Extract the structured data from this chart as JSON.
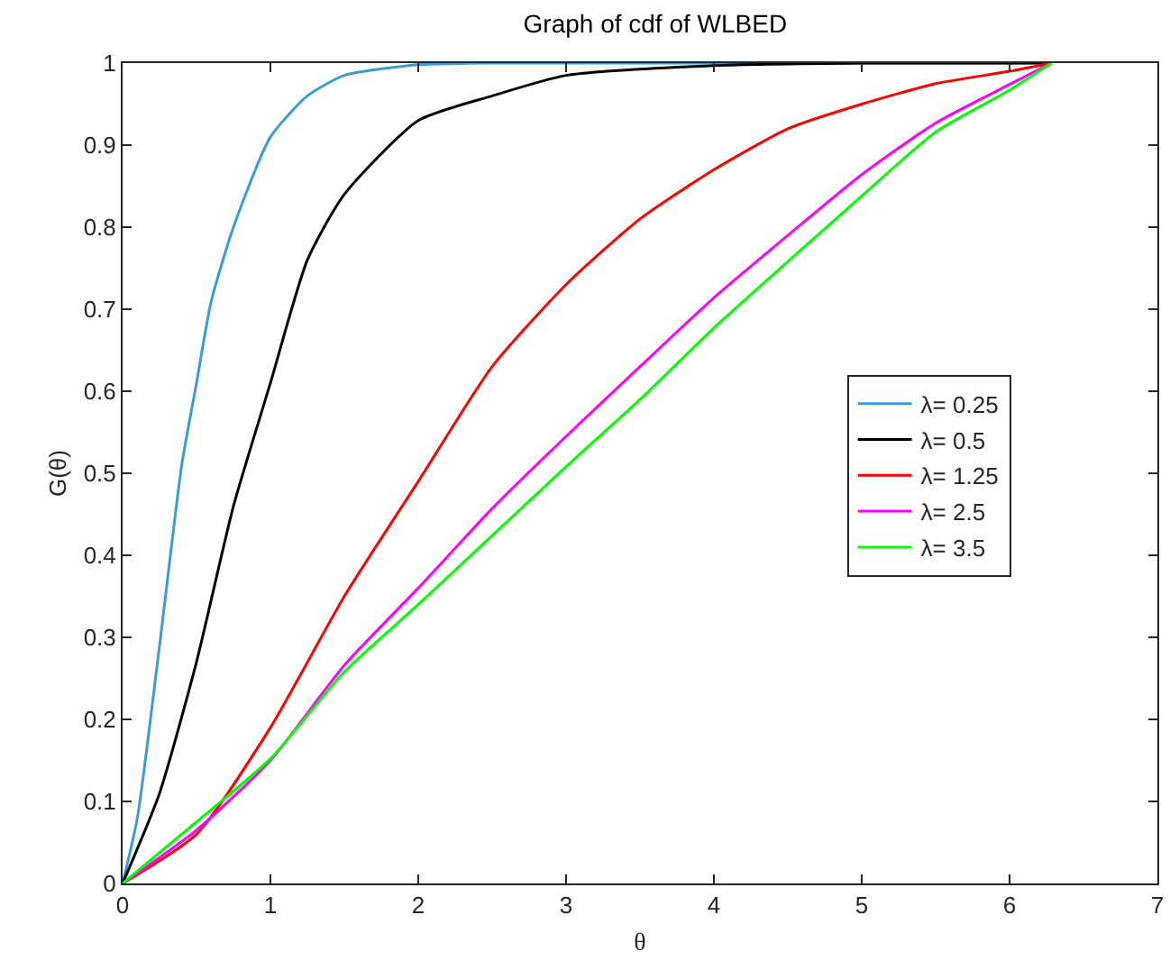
{
  "chart_data": {
    "type": "line",
    "title": "Graph of cdf of WLBED",
    "xlabel": "θ",
    "ylabel": "G(θ)",
    "xlim": [
      0,
      7
    ],
    "xticks": [
      0,
      1,
      2,
      3,
      4,
      5,
      6,
      7
    ],
    "ylim": [
      0,
      1
    ],
    "yticks": [
      0,
      0.1,
      0.2,
      0.3,
      0.4,
      0.5,
      0.6,
      0.7,
      0.8,
      0.9,
      1
    ],
    "grid": false,
    "legend": "right",
    "line_style": "solid",
    "marker": "none",
    "series": [
      {
        "name": "λ= 0.25",
        "color": "#3c9bd6",
        "x": [
          0,
          0.1,
          0.25,
          0.4,
          0.5,
          0.6,
          0.75,
          1,
          1.25,
          1.5,
          2,
          2.5,
          6.2832
        ],
        "values": [
          0,
          0.08,
          0.29,
          0.51,
          0.61,
          0.71,
          0.8,
          0.91,
          0.96,
          0.985,
          0.998,
          1,
          1
        ]
      },
      {
        "name": "λ= 0.5",
        "color": "#000000",
        "x": [
          0,
          0.25,
          0.5,
          0.75,
          1,
          1.25,
          1.5,
          2,
          2.5,
          3,
          4,
          5,
          6.2832
        ],
        "values": [
          0,
          0.11,
          0.27,
          0.46,
          0.61,
          0.76,
          0.84,
          0.93,
          0.96,
          0.985,
          0.997,
          1,
          1
        ]
      },
      {
        "name": "λ= 1.25",
        "color": "#ff0000",
        "x": [
          0,
          0.5,
          1,
          1.5,
          2,
          2.5,
          3,
          3.5,
          4,
          4.5,
          5,
          5.5,
          6,
          6.2832
        ],
        "values": [
          0,
          0.06,
          0.19,
          0.35,
          0.49,
          0.63,
          0.73,
          0.81,
          0.87,
          0.92,
          0.95,
          0.975,
          0.99,
          1
        ]
      },
      {
        "name": "λ= 2.5",
        "color": "#ff00ff",
        "x": [
          0,
          0.5,
          1,
          1.5,
          2,
          2.5,
          3,
          3.5,
          4,
          4.5,
          5,
          5.5,
          6,
          6.2832
        ],
        "values": [
          0,
          0.065,
          0.15,
          0.266,
          0.36,
          0.457,
          0.545,
          0.63,
          0.714,
          0.79,
          0.864,
          0.927,
          0.974,
          1
        ]
      },
      {
        "name": "λ= 3.5",
        "color": "#00ff00",
        "x": [
          0,
          0.5,
          1,
          1.5,
          2,
          2.5,
          3,
          3.5,
          4,
          4.5,
          5,
          5.5,
          6,
          6.2832
        ],
        "values": [
          0,
          0.075,
          0.152,
          0.258,
          0.34,
          0.424,
          0.508,
          0.59,
          0.677,
          0.758,
          0.838,
          0.916,
          0.967,
          1
        ]
      }
    ]
  }
}
